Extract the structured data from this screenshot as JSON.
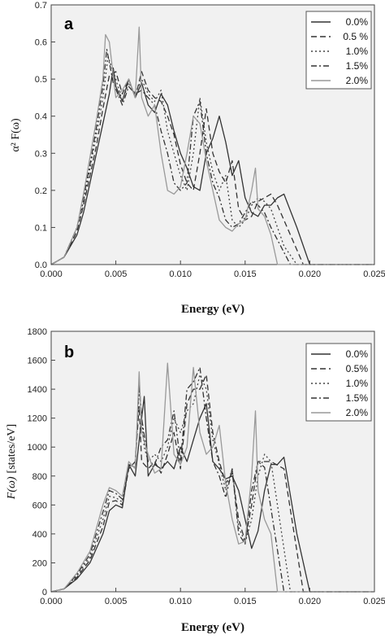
{
  "chart_data": [
    {
      "type": "line",
      "panel_label": "a",
      "xlabel": "Energy (eV)",
      "ylabel_main": "α² F(ω)",
      "xlim": [
        0.0,
        0.025
      ],
      "ylim": [
        0.0,
        0.7
      ],
      "x_ticks": [
        "0.000",
        "0.005",
        "0.010",
        "0.015",
        "0.020",
        "0.025"
      ],
      "y_ticks": [
        "0.0",
        "0.1",
        "0.2",
        "0.3",
        "0.4",
        "0.5",
        "0.6",
        "0.7"
      ],
      "legend_position": "top-right",
      "grid": false,
      "series": [
        {
          "name": "0.0%",
          "color": "#333333",
          "dash": "",
          "x": [
            0,
            0.001,
            0.002,
            0.0025,
            0.003,
            0.0035,
            0.004,
            0.0045,
            0.0048,
            0.005,
            0.0055,
            0.006,
            0.0065,
            0.007,
            0.0075,
            0.008,
            0.0085,
            0.009,
            0.0095,
            0.01,
            0.0105,
            0.011,
            0.0115,
            0.012,
            0.0125,
            0.013,
            0.0135,
            0.014,
            0.0145,
            0.015,
            0.0155,
            0.016,
            0.0165,
            0.017,
            0.0175,
            0.018,
            0.019,
            0.02,
            0.025
          ],
          "y": [
            0,
            0.02,
            0.08,
            0.14,
            0.22,
            0.3,
            0.38,
            0.46,
            0.53,
            0.48,
            0.44,
            0.5,
            0.45,
            0.49,
            0.43,
            0.41,
            0.46,
            0.43,
            0.36,
            0.3,
            0.26,
            0.21,
            0.2,
            0.3,
            0.34,
            0.4,
            0.33,
            0.24,
            0.28,
            0.18,
            0.14,
            0.13,
            0.16,
            0.16,
            0.18,
            0.19,
            0.1,
            0,
            0
          ]
        },
        {
          "name": "0.5 %",
          "color": "#333333",
          "dash": "7,4",
          "x": [
            0,
            0.001,
            0.002,
            0.0025,
            0.003,
            0.0035,
            0.004,
            0.0045,
            0.005,
            0.0055,
            0.006,
            0.0065,
            0.007,
            0.0075,
            0.008,
            0.0085,
            0.009,
            0.0095,
            0.01,
            0.0105,
            0.011,
            0.0115,
            0.012,
            0.0125,
            0.013,
            0.0135,
            0.014,
            0.0145,
            0.015,
            0.0155,
            0.016,
            0.0165,
            0.017,
            0.0175,
            0.0185,
            0.0195,
            0.025
          ],
          "y": [
            0,
            0.02,
            0.09,
            0.16,
            0.24,
            0.32,
            0.42,
            0.51,
            0.52,
            0.46,
            0.5,
            0.45,
            0.52,
            0.47,
            0.45,
            0.44,
            0.4,
            0.35,
            0.27,
            0.22,
            0.2,
            0.3,
            0.42,
            0.3,
            0.25,
            0.22,
            0.28,
            0.15,
            0.12,
            0.13,
            0.17,
            0.18,
            0.19,
            0.16,
            0.08,
            0,
            0
          ]
        },
        {
          "name": "1.0%",
          "color": "#444444",
          "dash": "2,3",
          "x": [
            0,
            0.001,
            0.002,
            0.0025,
            0.003,
            0.0035,
            0.004,
            0.0044,
            0.005,
            0.0055,
            0.006,
            0.0065,
            0.007,
            0.0075,
            0.008,
            0.0085,
            0.009,
            0.0095,
            0.01,
            0.0105,
            0.011,
            0.0115,
            0.012,
            0.0125,
            0.013,
            0.0135,
            0.014,
            0.0145,
            0.015,
            0.0155,
            0.016,
            0.0165,
            0.017,
            0.018,
            0.019,
            0.025
          ],
          "y": [
            0,
            0.02,
            0.1,
            0.17,
            0.26,
            0.35,
            0.45,
            0.56,
            0.5,
            0.44,
            0.49,
            0.46,
            0.5,
            0.46,
            0.44,
            0.47,
            0.36,
            0.3,
            0.24,
            0.2,
            0.3,
            0.45,
            0.33,
            0.25,
            0.2,
            0.24,
            0.12,
            0.1,
            0.12,
            0.16,
            0.18,
            0.17,
            0.15,
            0.05,
            0,
            0
          ]
        },
        {
          "name": "1.5%",
          "color": "#333333",
          "dash": "7,3,2,3",
          "x": [
            0,
            0.001,
            0.002,
            0.0025,
            0.003,
            0.0035,
            0.004,
            0.0043,
            0.0048,
            0.0055,
            0.006,
            0.0065,
            0.007,
            0.0075,
            0.008,
            0.0085,
            0.009,
            0.0095,
            0.01,
            0.0105,
            0.011,
            0.0115,
            0.012,
            0.0125,
            0.013,
            0.0135,
            0.014,
            0.0145,
            0.015,
            0.0155,
            0.016,
            0.0165,
            0.017,
            0.0185,
            0.025
          ],
          "y": [
            0,
            0.02,
            0.1,
            0.18,
            0.27,
            0.37,
            0.48,
            0.58,
            0.49,
            0.43,
            0.48,
            0.46,
            0.47,
            0.45,
            0.43,
            0.36,
            0.3,
            0.22,
            0.2,
            0.22,
            0.4,
            0.44,
            0.3,
            0.22,
            0.18,
            0.12,
            0.1,
            0.11,
            0.14,
            0.17,
            0.16,
            0.14,
            0.1,
            0,
            0
          ]
        },
        {
          "name": "2.0%",
          "color": "#999999",
          "dash": "",
          "x": [
            0,
            0.001,
            0.002,
            0.0025,
            0.003,
            0.0035,
            0.004,
            0.0042,
            0.0045,
            0.005,
            0.0055,
            0.006,
            0.0065,
            0.0068,
            0.007,
            0.0075,
            0.008,
            0.0085,
            0.009,
            0.0095,
            0.01,
            0.0105,
            0.011,
            0.0115,
            0.012,
            0.0125,
            0.013,
            0.0135,
            0.014,
            0.0145,
            0.015,
            0.0155,
            0.0158,
            0.016,
            0.0165,
            0.017,
            0.0175,
            0.025
          ],
          "y": [
            0,
            0.02,
            0.1,
            0.19,
            0.29,
            0.39,
            0.5,
            0.62,
            0.6,
            0.45,
            0.47,
            0.5,
            0.45,
            0.64,
            0.45,
            0.4,
            0.43,
            0.3,
            0.2,
            0.19,
            0.21,
            0.3,
            0.4,
            0.38,
            0.28,
            0.2,
            0.12,
            0.1,
            0.09,
            0.11,
            0.12,
            0.2,
            0.26,
            0.15,
            0.13,
            0.08,
            0,
            0
          ]
        }
      ]
    },
    {
      "type": "line",
      "panel_label": "b",
      "xlabel": "Energy (eV)",
      "ylabel_main": "F(ω)",
      "ylabel_unit": "[states/eV]",
      "xlim": [
        0.0,
        0.025
      ],
      "ylim": [
        0,
        1800
      ],
      "x_ticks": [
        "0.000",
        "0.005",
        "0.010",
        "0.015",
        "0.020",
        "0.025"
      ],
      "y_ticks": [
        "0",
        "200",
        "400",
        "600",
        "800",
        "1000",
        "1200",
        "1400",
        "1600",
        "1800"
      ],
      "legend_position": "top-right",
      "grid": false,
      "series": [
        {
          "name": "0.0%",
          "color": "#333333",
          "dash": "",
          "x": [
            0,
            0.001,
            0.002,
            0.003,
            0.004,
            0.0045,
            0.005,
            0.0055,
            0.006,
            0.0065,
            0.007,
            0.0072,
            0.0075,
            0.008,
            0.0085,
            0.009,
            0.0095,
            0.01,
            0.0105,
            0.011,
            0.0115,
            0.012,
            0.0125,
            0.013,
            0.0135,
            0.014,
            0.0145,
            0.015,
            0.0155,
            0.016,
            0.0165,
            0.017,
            0.0175,
            0.018,
            0.019,
            0.02,
            0.025
          ],
          "y": [
            0,
            20,
            90,
            200,
            400,
            560,
            600,
            580,
            880,
            800,
            1200,
            1350,
            800,
            880,
            850,
            900,
            850,
            1000,
            900,
            1050,
            1200,
            1300,
            900,
            850,
            780,
            800,
            700,
            500,
            300,
            420,
            700,
            880,
            880,
            930,
            400,
            0,
            0
          ]
        },
        {
          "name": "0.5%",
          "color": "#333333",
          "dash": "7,4",
          "x": [
            0,
            0.001,
            0.002,
            0.003,
            0.004,
            0.0045,
            0.005,
            0.0055,
            0.006,
            0.0065,
            0.0068,
            0.007,
            0.0075,
            0.008,
            0.0085,
            0.009,
            0.0095,
            0.01,
            0.0105,
            0.011,
            0.0115,
            0.012,
            0.0125,
            0.013,
            0.0135,
            0.014,
            0.0145,
            0.015,
            0.0155,
            0.016,
            0.0165,
            0.017,
            0.018,
            0.0195,
            0.025
          ],
          "y": [
            0,
            20,
            100,
            220,
            450,
            620,
            630,
            600,
            850,
            900,
            1280,
            900,
            850,
            900,
            820,
            950,
            1100,
            850,
            1300,
            1400,
            1400,
            1500,
            1100,
            900,
            750,
            820,
            500,
            350,
            600,
            900,
            900,
            900,
            850,
            0,
            0
          ]
        },
        {
          "name": "1.0%",
          "color": "#444444",
          "dash": "2,3",
          "x": [
            0,
            0.001,
            0.002,
            0.003,
            0.004,
            0.0045,
            0.005,
            0.0055,
            0.006,
            0.0065,
            0.0068,
            0.0072,
            0.0075,
            0.008,
            0.0085,
            0.009,
            0.0095,
            0.01,
            0.0105,
            0.011,
            0.0115,
            0.012,
            0.0125,
            0.013,
            0.0135,
            0.014,
            0.0145,
            0.015,
            0.0155,
            0.016,
            0.0165,
            0.017,
            0.0185,
            0.025
          ],
          "y": [
            0,
            20,
            110,
            240,
            500,
            660,
            650,
            620,
            860,
            880,
            1400,
            1000,
            900,
            950,
            900,
            1000,
            1200,
            1100,
            1250,
            1300,
            1500,
            1400,
            1050,
            880,
            700,
            850,
            450,
            340,
            500,
            800,
            950,
            900,
            0,
            0
          ]
        },
        {
          "name": "1.5%",
          "color": "#333333",
          "dash": "7,3,2,3",
          "x": [
            0,
            0.001,
            0.002,
            0.003,
            0.004,
            0.0045,
            0.005,
            0.0055,
            0.006,
            0.0065,
            0.0068,
            0.007,
            0.0075,
            0.008,
            0.0085,
            0.009,
            0.0095,
            0.01,
            0.0105,
            0.011,
            0.0115,
            0.012,
            0.0125,
            0.013,
            0.0135,
            0.014,
            0.0145,
            0.015,
            0.0155,
            0.016,
            0.0165,
            0.018,
            0.025
          ],
          "y": [
            0,
            20,
            120,
            260,
            550,
            700,
            680,
            640,
            880,
            860,
            1450,
            1200,
            900,
            880,
            1000,
            1050,
            1250,
            900,
            1400,
            1450,
            1550,
            1200,
            900,
            800,
            650,
            850,
            400,
            330,
            700,
            900,
            860,
            0,
            0
          ]
        },
        {
          "name": "2.0%",
          "color": "#999999",
          "dash": "",
          "x": [
            0,
            0.001,
            0.002,
            0.003,
            0.004,
            0.0045,
            0.005,
            0.0055,
            0.006,
            0.0065,
            0.0068,
            0.007,
            0.0075,
            0.008,
            0.0085,
            0.009,
            0.0095,
            0.01,
            0.0105,
            0.011,
            0.0115,
            0.012,
            0.0125,
            0.013,
            0.0135,
            0.014,
            0.0145,
            0.015,
            0.0155,
            0.0158,
            0.016,
            0.0165,
            0.017,
            0.0175,
            0.025
          ],
          "y": [
            0,
            20,
            130,
            280,
            600,
            720,
            700,
            660,
            900,
            850,
            1520,
            1100,
            950,
            820,
            850,
            1580,
            950,
            880,
            1000,
            1550,
            1100,
            950,
            1000,
            1150,
            750,
            500,
            330,
            350,
            800,
            1250,
            700,
            500,
            400,
            0,
            0
          ]
        }
      ]
    }
  ]
}
